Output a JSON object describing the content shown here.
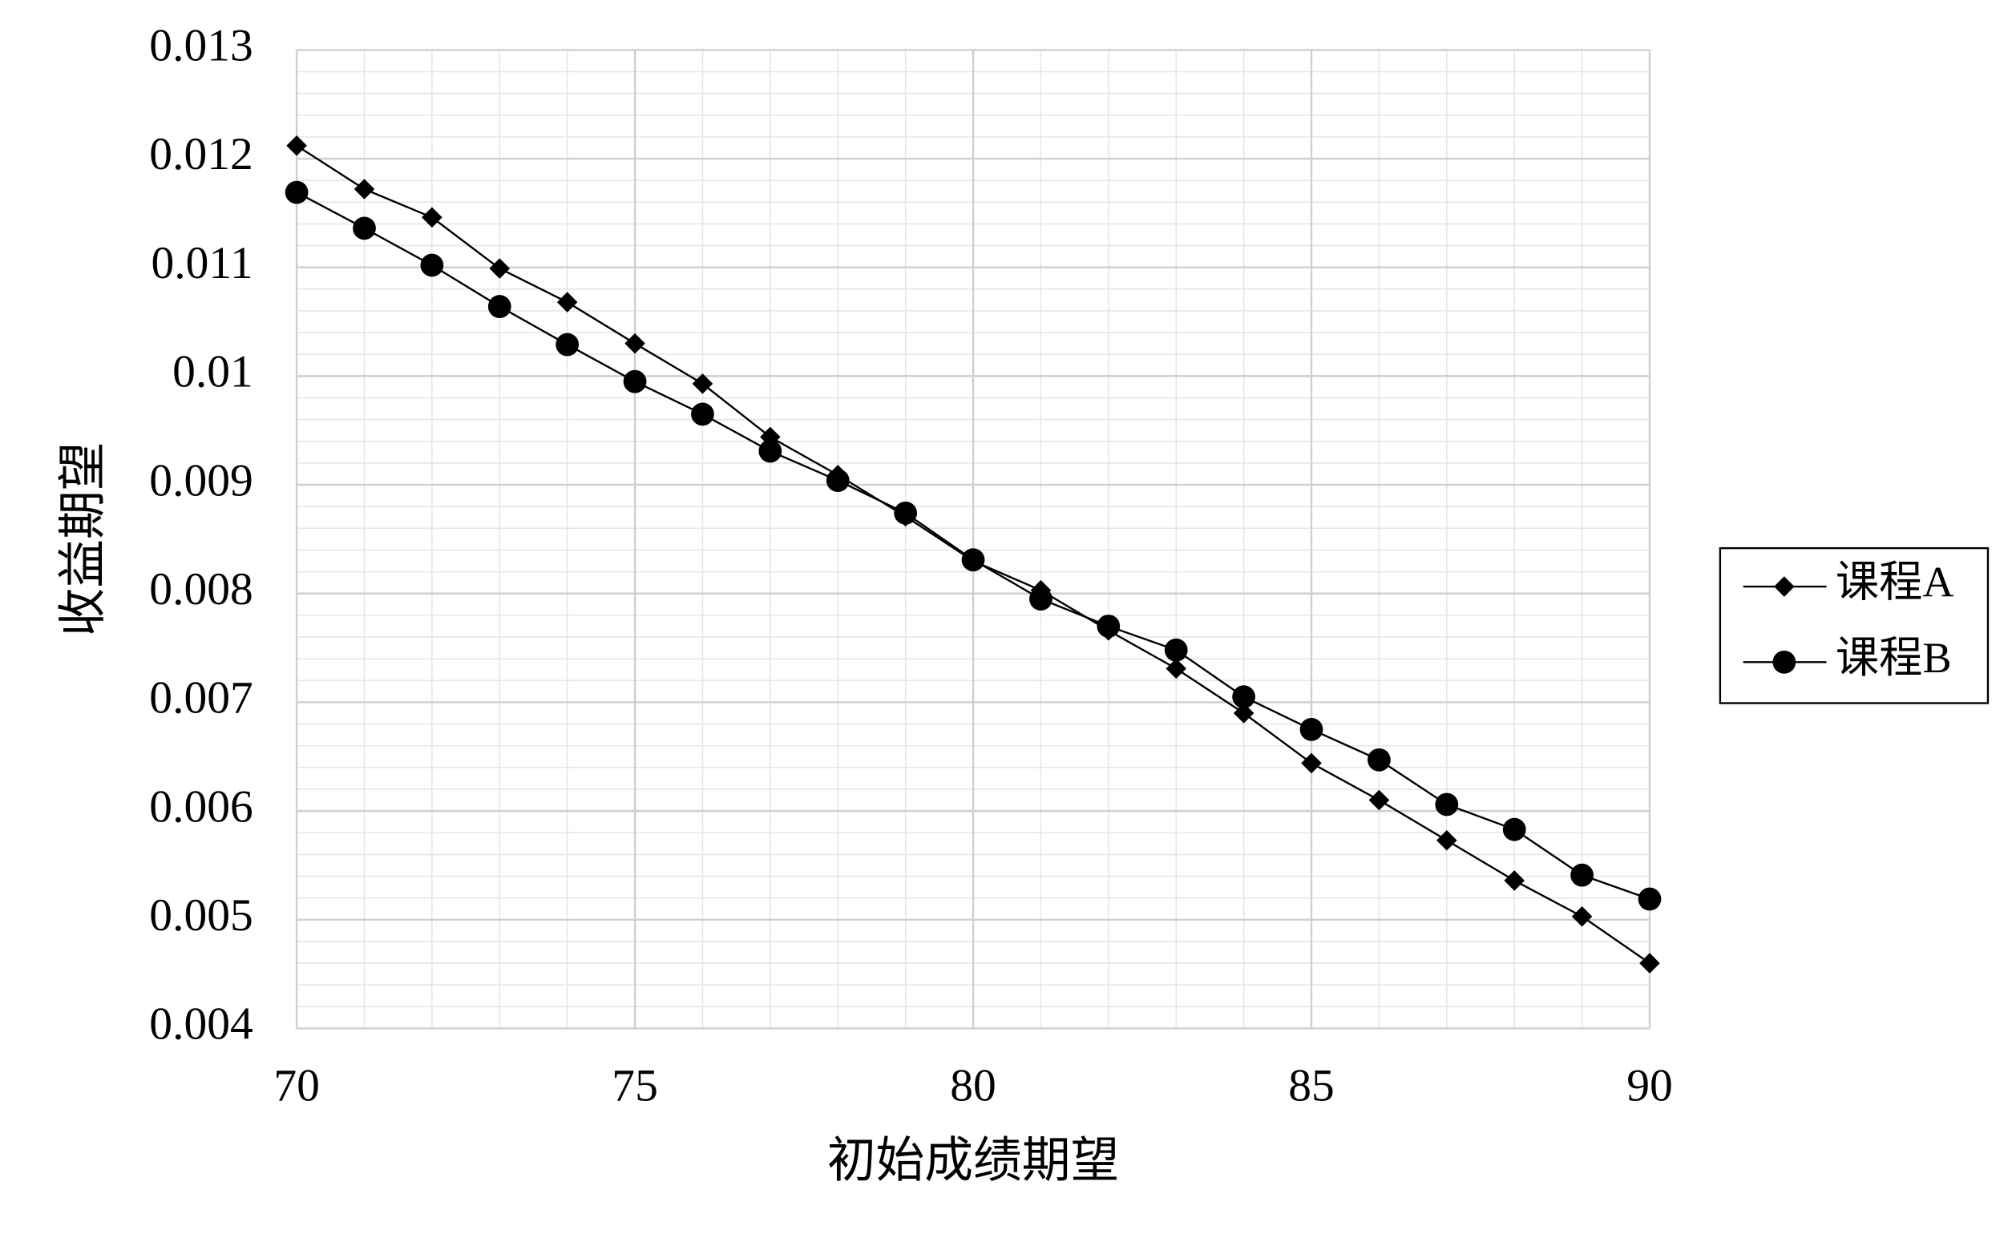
{
  "chart_data": {
    "type": "line",
    "xlabel": "初始成绩期望",
    "ylabel": "收益期望",
    "x": [
      70,
      71,
      72,
      73,
      74,
      75,
      76,
      77,
      78,
      79,
      80,
      81,
      82,
      83,
      84,
      85,
      86,
      87,
      88,
      89,
      90
    ],
    "series": [
      {
        "name": "课程A",
        "color": "#000000",
        "marker": "diamond",
        "values": [
          0.01212,
          0.01172,
          0.01146,
          0.01099,
          0.01068,
          0.0103,
          0.00993,
          0.00944,
          0.00909,
          0.00871,
          0.0083,
          0.00803,
          0.00766,
          0.00731,
          0.0069,
          0.00644,
          0.0061,
          0.00573,
          0.00536,
          0.00503,
          0.0046
        ]
      },
      {
        "name": "课程B",
        "color": "#000000",
        "marker": "circle",
        "values": [
          0.01169,
          0.01136,
          0.01102,
          0.01064,
          0.01029,
          0.00995,
          0.00965,
          0.00931,
          0.00904,
          0.00874,
          0.00831,
          0.00795,
          0.0077,
          0.00748,
          0.00705,
          0.00675,
          0.00647,
          0.00606,
          0.00583,
          0.00541,
          0.00519
        ]
      }
    ],
    "xlim": [
      70,
      90
    ],
    "xticks": [
      70,
      75,
      80,
      85,
      90
    ],
    "ylim": [
      0.004,
      0.013
    ],
    "yticks": [
      0.004,
      0.005,
      0.006,
      0.007,
      0.008,
      0.009,
      0.01,
      0.011,
      0.012,
      0.013
    ],
    "grid": true,
    "minor_grid": true,
    "legend": "right"
  }
}
